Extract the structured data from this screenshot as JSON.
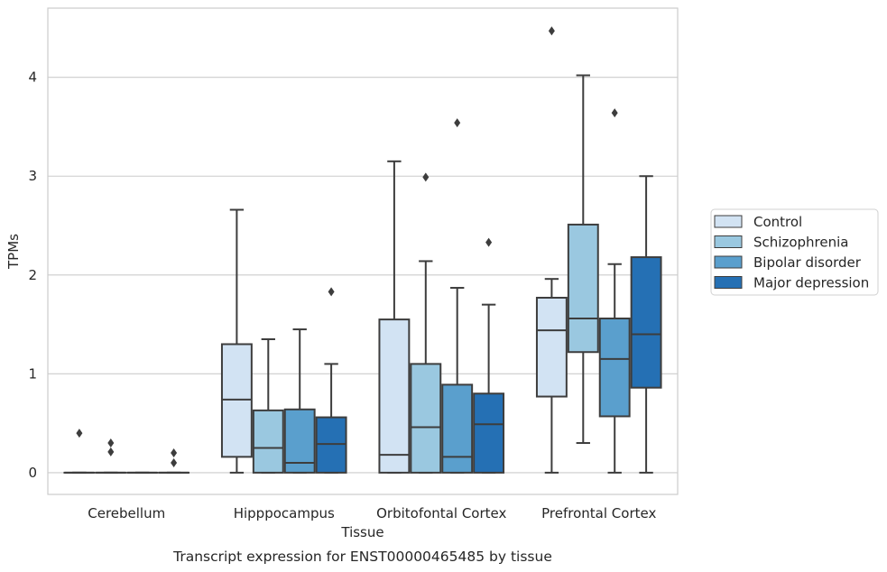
{
  "chart_data": {
    "type": "boxplot",
    "title": "",
    "caption": "Transcript expression for ENST00000465485 by tissue",
    "xlabel": "Tissue",
    "ylabel": "TPMs",
    "ylim": [
      -0.22,
      4.7
    ],
    "yticks": [
      "0",
      "1",
      "2",
      "3",
      "4"
    ],
    "grid": "horizontal",
    "legend_position": "right",
    "categories": [
      "Cerebellum",
      "Hipppocampus",
      "Orbitofontal Cortex",
      "Prefrontal Cortex"
    ],
    "series": [
      {
        "name": "Control",
        "color": "#d2e3f3",
        "boxes": [
          {
            "whislo": 0,
            "q1": 0,
            "med": 0,
            "q3": 0,
            "whishi": 0,
            "fliers": [
              0.4
            ]
          },
          {
            "whislo": 0,
            "q1": 0.16,
            "med": 0.74,
            "q3": 1.3,
            "whishi": 2.66,
            "fliers": []
          },
          {
            "whislo": 0,
            "q1": 0,
            "med": 0.18,
            "q3": 1.55,
            "whishi": 3.15,
            "fliers": []
          },
          {
            "whislo": 0,
            "q1": 0.77,
            "med": 1.44,
            "q3": 1.77,
            "whishi": 1.96,
            "fliers": [
              4.47
            ]
          }
        ]
      },
      {
        "name": "Schizophrenia",
        "color": "#9ac8e0",
        "boxes": [
          {
            "whislo": 0,
            "q1": 0,
            "med": 0,
            "q3": 0,
            "whishi": 0,
            "fliers": [
              0.3,
              0.21
            ]
          },
          {
            "whislo": 0,
            "q1": 0,
            "med": 0.25,
            "q3": 0.63,
            "whishi": 1.35,
            "fliers": []
          },
          {
            "whislo": 0,
            "q1": 0,
            "med": 0.46,
            "q3": 1.1,
            "whishi": 2.14,
            "fliers": [
              2.99
            ]
          },
          {
            "whislo": 0.3,
            "q1": 1.22,
            "med": 1.56,
            "q3": 2.51,
            "whishi": 4.02,
            "fliers": []
          }
        ]
      },
      {
        "name": "Bipolar disorder",
        "color": "#5a9fcd",
        "boxes": [
          {
            "whislo": 0,
            "q1": 0,
            "med": 0,
            "q3": 0,
            "whishi": 0,
            "fliers": []
          },
          {
            "whislo": 0,
            "q1": 0,
            "med": 0.1,
            "q3": 0.64,
            "whishi": 1.45,
            "fliers": []
          },
          {
            "whislo": 0,
            "q1": 0,
            "med": 0.16,
            "q3": 0.89,
            "whishi": 1.87,
            "fliers": [
              3.54
            ]
          },
          {
            "whislo": 0,
            "q1": 0.57,
            "med": 1.15,
            "q3": 1.56,
            "whishi": 2.11,
            "fliers": [
              3.64
            ]
          }
        ]
      },
      {
        "name": "Major depression",
        "color": "#2570b4",
        "boxes": [
          {
            "whislo": 0,
            "q1": 0,
            "med": 0,
            "q3": 0,
            "whishi": 0,
            "fliers": [
              0.2,
              0.1
            ]
          },
          {
            "whislo": 0,
            "q1": 0,
            "med": 0.29,
            "q3": 0.56,
            "whishi": 1.1,
            "fliers": [
              1.83
            ]
          },
          {
            "whislo": 0,
            "q1": 0,
            "med": 0.49,
            "q3": 0.8,
            "whishi": 1.7,
            "fliers": [
              2.33
            ]
          },
          {
            "whislo": 0,
            "q1": 0.86,
            "med": 1.4,
            "q3": 2.18,
            "whishi": 3.0,
            "fliers": []
          }
        ]
      }
    ]
  }
}
